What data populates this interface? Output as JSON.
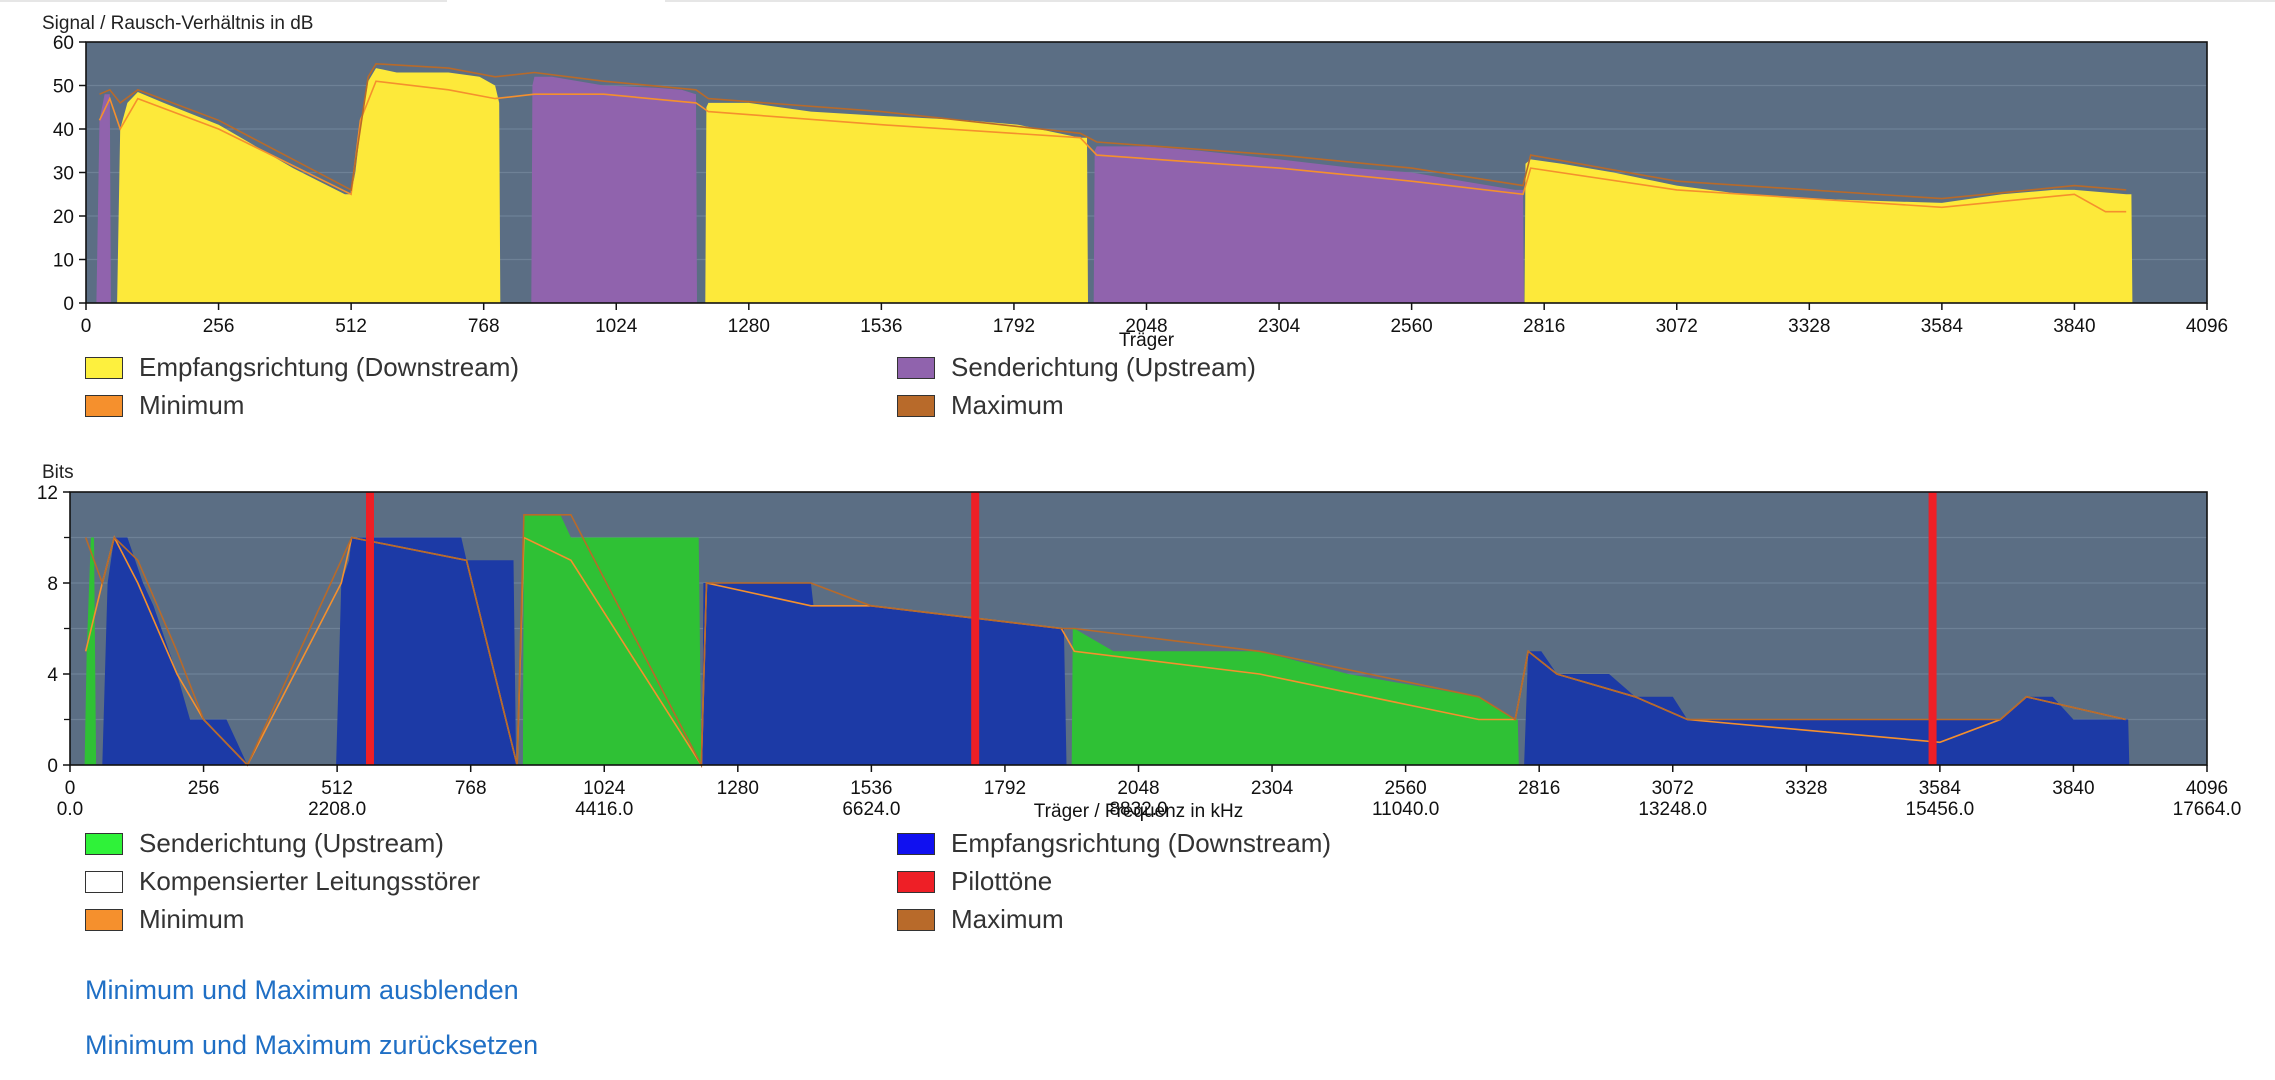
{
  "colors": {
    "plot_bg": "#5b6e84",
    "grid": "#6e8196",
    "downstream_snr": "#fde93a",
    "upstream_snr": "#9063ad",
    "minimum": "#f5902d",
    "maximum": "#b86a2a",
    "bits_upstream": "#2fc135",
    "bits_downstream": "#1c3aa6",
    "pilot": "#ee1f26",
    "link": "#1f6fc5"
  },
  "legend_snr": [
    {
      "label": "Empfangsrichtung (Downstream)",
      "color": "#fdf03e"
    },
    {
      "label": "Senderichtung (Upstream)",
      "color": "#9063ad"
    },
    {
      "label": "Minimum",
      "color": "#f5902d"
    },
    {
      "label": "Maximum",
      "color": "#b86a2a"
    }
  ],
  "legend_bits": [
    {
      "label": "Senderichtung (Upstream)",
      "color": "#2ff239"
    },
    {
      "label": "Empfangsrichtung (Downstream)",
      "color": "#1010f0"
    },
    {
      "label": "Kompensierter Leitungsstörer",
      "color": "#ffffff"
    },
    {
      "label": "Pilottöne",
      "color": "#ee1f26"
    },
    {
      "label": "Minimum",
      "color": "#f5902d"
    },
    {
      "label": "Maximum",
      "color": "#b86a2a"
    }
  ],
  "links": {
    "hide": "Minimum und Maximum ausblenden",
    "reset": "Minimum und Maximum zurücksetzen"
  },
  "chart_data": [
    {
      "type": "area",
      "title": "Signal / Rausch-Verhältnis in dB",
      "xlabel": "Träger",
      "ylabel": "Signal / Rausch-Verhältnis in dB",
      "xlim": [
        0,
        4096
      ],
      "ylim": [
        0,
        60
      ],
      "xticks": [
        0,
        256,
        512,
        768,
        1024,
        1280,
        1536,
        1792,
        2048,
        2304,
        2560,
        2816,
        3072,
        3328,
        3584,
        3840,
        4096
      ],
      "yticks": [
        0,
        10,
        20,
        30,
        40,
        50,
        60
      ],
      "grid": true,
      "series": [
        {
          "name": "Senderichtung (Upstream)",
          "x": [
            20,
            26,
            36,
            46,
            48
          ],
          "values": [
            0,
            42,
            48,
            48,
            0
          ]
        },
        {
          "name": "Empfangsrichtung (Downstream)",
          "x": [
            60,
            66,
            80,
            100,
            150,
            256,
            400,
            450,
            500,
            512,
            520,
            530,
            545,
            560,
            600,
            700,
            760,
            790,
            798,
            800
          ],
          "values": [
            0,
            40,
            46,
            48.5,
            46,
            41,
            31,
            28,
            25,
            25,
            30,
            40,
            51,
            54,
            53,
            53,
            52,
            50,
            46,
            0
          ]
        },
        {
          "name": "Senderichtung (Upstream)",
          "x": [
            860,
            862,
            866,
            900,
            1000,
            1100,
            1150,
            1178,
            1180
          ],
          "values": [
            0,
            50,
            52,
            52,
            50,
            49.5,
            49,
            48,
            0
          ]
        },
        {
          "name": "Empfangsrichtung (Downstream)",
          "x": [
            1196,
            1198,
            1202,
            1280,
            1400,
            1536,
            1700,
            1800,
            1920,
            1933,
            1935
          ],
          "values": [
            0,
            45,
            46,
            46,
            44,
            43,
            42,
            41,
            38,
            38,
            0
          ]
        },
        {
          "name": "Senderichtung (Upstream)",
          "x": [
            1946,
            1948,
            1952,
            2050,
            2150,
            2304,
            2450,
            2560,
            2660,
            2760,
            2775,
            2777
          ],
          "values": [
            0,
            35,
            36,
            36,
            35,
            33,
            31,
            30,
            28,
            26,
            26,
            0
          ]
        },
        {
          "name": "Empfangsrichtung (Downstream)",
          "x": [
            2778,
            2780,
            2790,
            2850,
            2950,
            3072,
            3200,
            3328,
            3450,
            3584,
            3700,
            3800,
            3840,
            3940,
            3950,
            3952
          ],
          "values": [
            0,
            32,
            33,
            32,
            30,
            27,
            25,
            24,
            23.5,
            23,
            25,
            26,
            26,
            25,
            25,
            0
          ]
        },
        {
          "name": "Minimum",
          "x": [
            26,
            46,
            66,
            100,
            256,
            512,
            530,
            560,
            700,
            790,
            866,
            1000,
            1178,
            1202,
            1536,
            1920,
            1952,
            2304,
            2560,
            2775,
            2790,
            3072,
            3584,
            3840,
            3900,
            3940
          ],
          "values": [
            42,
            47,
            40,
            47,
            40,
            25,
            42,
            51,
            49,
            47,
            48,
            48,
            46,
            44,
            41,
            38,
            34,
            31,
            28,
            25,
            31,
            26,
            22,
            25,
            21,
            21
          ]
        },
        {
          "name": "Maximum",
          "x": [
            26,
            46,
            66,
            100,
            256,
            512,
            545,
            560,
            700,
            790,
            866,
            1000,
            1178,
            1202,
            1536,
            1920,
            1952,
            2304,
            2560,
            2775,
            2790,
            3072,
            3584,
            3840,
            3940
          ],
          "values": [
            48,
            49,
            46,
            49,
            42,
            26,
            52,
            55,
            54,
            52,
            53,
            51,
            49,
            47,
            44,
            39,
            37,
            34,
            31,
            27,
            34,
            28,
            24,
            27,
            26
          ]
        }
      ]
    },
    {
      "type": "area",
      "title": "Bits",
      "xlabel": "Träger / Frequenz in kHz",
      "ylabel": "Bits",
      "xlim": [
        0,
        4096
      ],
      "ylim": [
        0,
        12
      ],
      "xticks": [
        0,
        256,
        512,
        768,
        1024,
        1280,
        1536,
        1792,
        2048,
        2304,
        2560,
        2816,
        3072,
        3328,
        3584,
        3840,
        4096
      ],
      "freq_ticks": [
        {
          "carrier": 0,
          "label": "0.0"
        },
        {
          "carrier": 512,
          "label": "2208.0"
        },
        {
          "carrier": 1024,
          "label": "4416.0"
        },
        {
          "carrier": 1536,
          "label": "6624.0"
        },
        {
          "carrier": 2048,
          "label": "8832.0"
        },
        {
          "carrier": 2560,
          "label": "11040.0"
        },
        {
          "carrier": 3072,
          "label": "13248.0"
        },
        {
          "carrier": 3584,
          "label": "15456.0"
        },
        {
          "carrier": 4096,
          "label": "17664.0"
        }
      ],
      "ytick_labels": [
        {
          "value": 12,
          "label": "12"
        },
        {
          "value": 8,
          "label": "8"
        },
        {
          "value": 4,
          "label": "4"
        },
        {
          "value": 0,
          "label": "0"
        }
      ],
      "yminor_ticks": [
        10,
        6,
        2
      ],
      "grid": true,
      "series": [
        {
          "name": "Senderichtung (Upstream)",
          "x": [
            28,
            32,
            40,
            46,
            50
          ],
          "values": [
            0,
            5,
            10,
            10,
            0
          ]
        },
        {
          "name": "Empfangsrichtung (Downstream)",
          "x": [
            62,
            72,
            85,
            110,
            125,
            140,
            160,
            175,
            190,
            205,
            230,
            256,
            300,
            320,
            340,
            345
          ],
          "values": [
            0,
            8,
            10,
            10,
            9,
            8,
            7,
            6,
            5,
            4,
            2,
            2,
            2,
            1,
            0,
            0
          ]
        },
        {
          "name": "Empfangsrichtung (Downstream)",
          "x": [
            510,
            520,
            535,
            540,
            560,
            750,
            760,
            850,
            855,
            857
          ],
          "values": [
            0,
            8,
            9,
            10,
            10,
            10,
            9,
            9,
            0,
            0
          ]
        },
        {
          "name": "Senderichtung (Upstream)",
          "x": [
            868,
            870,
            872,
            940,
            960,
            1200,
            1205,
            1210
          ],
          "values": [
            0,
            11,
            11,
            11,
            10,
            10,
            10,
            0
          ]
        },
        {
          "name": "Empfangsrichtung (Downstream)",
          "x": [
            1212,
            1214,
            1220,
            1420,
            1425,
            1535,
            1900,
            1905,
            1910
          ],
          "values": [
            0,
            8,
            8,
            8,
            7,
            7,
            6,
            6,
            0
          ]
        },
        {
          "name": "Senderichtung (Upstream)",
          "x": [
            1920,
            1922,
            1925,
            2000,
            2280,
            2450,
            2700,
            2770,
            2775,
            2777
          ],
          "values": [
            0,
            6,
            6,
            5,
            5,
            4,
            3,
            2,
            2,
            0
          ]
        },
        {
          "name": "Empfangsrichtung (Downstream)",
          "x": [
            2787,
            2795,
            2820,
            2850,
            2950,
            3000,
            3072,
            3100,
            3584,
            3700,
            3750,
            3800,
            3840,
            3940,
            3945,
            3947
          ],
          "values": [
            0,
            5,
            5,
            4,
            4,
            3,
            3,
            2,
            2,
            2,
            3,
            3,
            2,
            2,
            2,
            0
          ]
        },
        {
          "name": "Minimum",
          "x": [
            30,
            62,
            85,
            130,
            205,
            256,
            340,
            520,
            540,
            760,
            857,
            870,
            960,
            1210,
            1220,
            1420,
            1535,
            1900,
            1925,
            2280,
            2700,
            2770,
            2795,
            2850,
            3000,
            3100,
            3584,
            3700,
            3750,
            3940
          ],
          "values": [
            5,
            8,
            10,
            8,
            4,
            2,
            0,
            8,
            10,
            9,
            0,
            10,
            9,
            0,
            8,
            7,
            7,
            6,
            5,
            4,
            2,
            2,
            5,
            4,
            3,
            2,
            1,
            2,
            3,
            2
          ]
        },
        {
          "name": "Maximum",
          "x": [
            30,
            62,
            85,
            130,
            205,
            256,
            340,
            520,
            540,
            760,
            857,
            870,
            960,
            1210,
            1220,
            1420,
            1535,
            1900,
            1925,
            2280,
            2700,
            2770,
            2795,
            2850,
            3000,
            3100,
            3584,
            3700,
            3750,
            3940
          ],
          "values": [
            10,
            8,
            10,
            9,
            5,
            2,
            0,
            9,
            10,
            9,
            0,
            11,
            11,
            0,
            8,
            8,
            7,
            6,
            6,
            5,
            3,
            2,
            5,
            4,
            3,
            2,
            2,
            2,
            3,
            2
          ]
        },
        {
          "name": "Pilottöne",
          "x": [
            575,
            1735,
            3570
          ],
          "values": [
            12,
            12,
            12
          ]
        }
      ]
    }
  ]
}
